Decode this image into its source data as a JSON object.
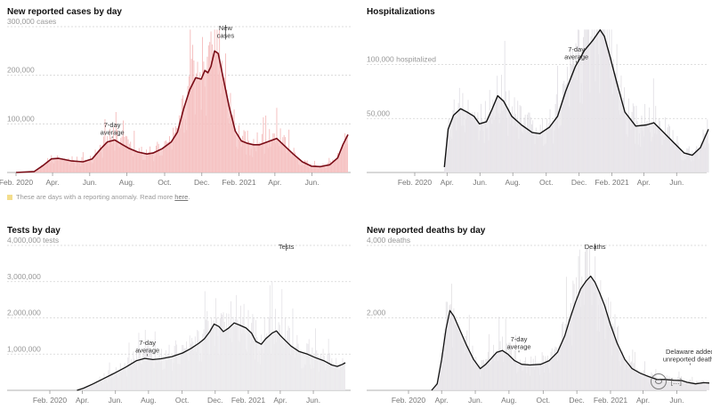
{
  "footnote": {
    "text": "These are days with a reporting anomaly. Read more ",
    "link": "here",
    "suffix": "."
  },
  "watermark": {
    "text": "[...]"
  },
  "chart_data": [
    {
      "id": "cases",
      "type": "area",
      "title": "New reported cases by day",
      "ylim": [
        0,
        300000
      ],
      "yticks": [
        {
          "v": 100000,
          "label": "100,000"
        },
        {
          "v": 200000,
          "label": "200,000"
        },
        {
          "v": 300000,
          "label": "300,000 cases"
        }
      ],
      "xlim": [
        0,
        545
      ],
      "xticks": [
        {
          "x": 0,
          "label": "Feb. 2020"
        },
        {
          "x": 60,
          "label": "Apr."
        },
        {
          "x": 121,
          "label": "Jun."
        },
        {
          "x": 182,
          "label": "Aug."
        },
        {
          "x": 244,
          "label": "Oct."
        },
        {
          "x": 305,
          "label": "Dec."
        },
        {
          "x": 366,
          "label": "Feb. 2021"
        },
        {
          "x": 425,
          "label": "Apr."
        },
        {
          "x": 486,
          "label": "Jun."
        }
      ],
      "series": [
        {
          "name": "7-day average",
          "points": [
            [
              0,
              0
            ],
            [
              30,
              2000
            ],
            [
              45,
              15000
            ],
            [
              58,
              28000
            ],
            [
              70,
              29000
            ],
            [
              90,
              24000
            ],
            [
              110,
              22000
            ],
            [
              125,
              28000
            ],
            [
              140,
              50000
            ],
            [
              150,
              63000
            ],
            [
              162,
              67000
            ],
            [
              175,
              57000
            ],
            [
              185,
              50000
            ],
            [
              200,
              42000
            ],
            [
              215,
              38000
            ],
            [
              225,
              40000
            ],
            [
              240,
              49000
            ],
            [
              255,
              63000
            ],
            [
              265,
              83000
            ],
            [
              275,
              130000
            ],
            [
              285,
              170000
            ],
            [
              295,
              195000
            ],
            [
              304,
              192000
            ],
            [
              310,
              210000
            ],
            [
              315,
              205000
            ],
            [
              320,
              218000
            ],
            [
              326,
              250000
            ],
            [
              332,
              245000
            ],
            [
              340,
              195000
            ],
            [
              350,
              135000
            ],
            [
              360,
              85000
            ],
            [
              370,
              65000
            ],
            [
              380,
              60000
            ],
            [
              390,
              57000
            ],
            [
              400,
              57000
            ],
            [
              415,
              64000
            ],
            [
              428,
              70000
            ],
            [
              440,
              56000
            ],
            [
              455,
              38000
            ],
            [
              470,
              22000
            ],
            [
              485,
              13000
            ],
            [
              500,
              12000
            ],
            [
              515,
              16000
            ],
            [
              528,
              30000
            ],
            [
              537,
              58000
            ],
            [
              545,
              78000
            ]
          ]
        }
      ],
      "annotations": [
        {
          "label": [
            "7-day",
            "average"
          ],
          "x": 158,
          "y": 67000
        },
        {
          "label": [
            "New",
            "cases"
          ],
          "x": 344,
          "y": 300000
        }
      ]
    },
    {
      "id": "hosp",
      "type": "area",
      "title": "Hospitalizations",
      "ylim": [
        0,
        135000
      ],
      "yticks": [
        {
          "v": 50000,
          "label": "50,000"
        },
        {
          "v": 100000,
          "label": "100,000 hospitalized"
        }
      ],
      "xlim": [
        0,
        545
      ],
      "xticks": [
        {
          "x": 0,
          "label": "Feb. 2020"
        },
        {
          "x": 60,
          "label": "Apr."
        },
        {
          "x": 121,
          "label": "Jun."
        },
        {
          "x": 182,
          "label": "Aug."
        },
        {
          "x": 244,
          "label": "Oct."
        },
        {
          "x": 305,
          "label": "Dec."
        },
        {
          "x": 366,
          "label": "Feb. 2021"
        },
        {
          "x": 425,
          "label": "Apr."
        },
        {
          "x": 486,
          "label": "Jun."
        }
      ],
      "series": [
        {
          "name": "7-day average",
          "points": [
            [
              55,
              5000
            ],
            [
              62,
              40000
            ],
            [
              72,
              53000
            ],
            [
              85,
              59000
            ],
            [
              97,
              56000
            ],
            [
              110,
              52000
            ],
            [
              120,
              45000
            ],
            [
              133,
              47000
            ],
            [
              143,
              58000
            ],
            [
              154,
              71000
            ],
            [
              165,
              66000
            ],
            [
              180,
              52000
            ],
            [
              198,
              44000
            ],
            [
              218,
              37000
            ],
            [
              232,
              36000
            ],
            [
              250,
              42000
            ],
            [
              265,
              52000
            ],
            [
              280,
              75000
            ],
            [
              298,
              98000
            ],
            [
              315,
              113000
            ],
            [
              330,
              122000
            ],
            [
              344,
              132000
            ],
            [
              352,
              126000
            ],
            [
              362,
              108000
            ],
            [
              375,
              83000
            ],
            [
              390,
              56000
            ],
            [
              410,
              43000
            ],
            [
              430,
              44000
            ],
            [
              444,
              46000
            ],
            [
              460,
              38000
            ],
            [
              480,
              28000
            ],
            [
              500,
              18000
            ],
            [
              515,
              16000
            ],
            [
              530,
              23000
            ],
            [
              545,
              40000
            ]
          ]
        }
      ],
      "annotations": [
        {
          "label": [
            "7-day",
            "average"
          ],
          "x": 300,
          "y": 100000
        }
      ]
    },
    {
      "id": "tests",
      "type": "area",
      "title": "Tests by day",
      "ylim": [
        0,
        4000000
      ],
      "yticks": [
        {
          "v": 1000000,
          "label": "1,000,000"
        },
        {
          "v": 2000000,
          "label": "2,000,000"
        },
        {
          "v": 3000000,
          "label": "3,000,000"
        },
        {
          "v": 4000000,
          "label": "4,000,000 tests"
        }
      ],
      "xlim": [
        0,
        545
      ],
      "xticks": [
        {
          "x": 0,
          "label": "Feb. 2020"
        },
        {
          "x": 60,
          "label": "Apr."
        },
        {
          "x": 121,
          "label": "Jun."
        },
        {
          "x": 182,
          "label": "Aug."
        },
        {
          "x": 244,
          "label": "Oct."
        },
        {
          "x": 305,
          "label": "Dec."
        },
        {
          "x": 366,
          "label": "Feb. 2021"
        },
        {
          "x": 425,
          "label": "Apr."
        },
        {
          "x": 486,
          "label": "Jun."
        }
      ],
      "series": [
        {
          "name": "7-day average",
          "points": [
            [
              50,
              0
            ],
            [
              62,
              60000
            ],
            [
              80,
              180000
            ],
            [
              100,
              330000
            ],
            [
              120,
              480000
            ],
            [
              140,
              640000
            ],
            [
              160,
              820000
            ],
            [
              175,
              880000
            ],
            [
              190,
              850000
            ],
            [
              205,
              870000
            ],
            [
              225,
              930000
            ],
            [
              245,
              1030000
            ],
            [
              260,
              1150000
            ],
            [
              275,
              1300000
            ],
            [
              285,
              1420000
            ],
            [
              295,
              1620000
            ],
            [
              303,
              1830000
            ],
            [
              312,
              1760000
            ],
            [
              320,
              1620000
            ],
            [
              330,
              1720000
            ],
            [
              340,
              1860000
            ],
            [
              350,
              1800000
            ],
            [
              362,
              1720000
            ],
            [
              372,
              1580000
            ],
            [
              380,
              1350000
            ],
            [
              390,
              1270000
            ],
            [
              398,
              1420000
            ],
            [
              410,
              1580000
            ],
            [
              418,
              1640000
            ],
            [
              426,
              1500000
            ],
            [
              434,
              1380000
            ],
            [
              445,
              1220000
            ],
            [
              460,
              1070000
            ],
            [
              475,
              1000000
            ],
            [
              490,
              900000
            ],
            [
              505,
              820000
            ],
            [
              520,
              700000
            ],
            [
              530,
              660000
            ],
            [
              540,
              720000
            ],
            [
              545,
              760000
            ]
          ]
        }
      ],
      "annotations": [
        {
          "label": [
            "7-day",
            "average"
          ],
          "x": 180,
          "y": 900000
        },
        {
          "label": [
            "Tests"
          ],
          "x": 436,
          "y": 4000000
        }
      ]
    },
    {
      "id": "deaths",
      "type": "area",
      "title": "New reported deaths by day",
      "ylim": [
        0,
        4000
      ],
      "yticks": [
        {
          "v": 2000,
          "label": "2,000"
        },
        {
          "v": 4000,
          "label": "4,000 deaths"
        }
      ],
      "xlim": [
        0,
        545
      ],
      "xticks": [
        {
          "x": 0,
          "label": "Feb. 2020"
        },
        {
          "x": 60,
          "label": "Apr."
        },
        {
          "x": 121,
          "label": "Jun."
        },
        {
          "x": 182,
          "label": "Aug."
        },
        {
          "x": 244,
          "label": "Oct."
        },
        {
          "x": 305,
          "label": "Dec."
        },
        {
          "x": 366,
          "label": "Feb. 2021"
        },
        {
          "x": 425,
          "label": "Apr."
        },
        {
          "x": 486,
          "label": "Jun."
        }
      ],
      "series": [
        {
          "name": "7-day average",
          "points": [
            [
              42,
              0
            ],
            [
              52,
              180
            ],
            [
              60,
              850
            ],
            [
              68,
              1700
            ],
            [
              75,
              2200
            ],
            [
              82,
              2050
            ],
            [
              92,
              1700
            ],
            [
              105,
              1250
            ],
            [
              118,
              850
            ],
            [
              130,
              600
            ],
            [
              140,
              720
            ],
            [
              150,
              880
            ],
            [
              160,
              1050
            ],
            [
              170,
              1100
            ],
            [
              180,
              1000
            ],
            [
              192,
              820
            ],
            [
              205,
              720
            ],
            [
              220,
              700
            ],
            [
              240,
              720
            ],
            [
              255,
              820
            ],
            [
              270,
              1050
            ],
            [
              283,
              1500
            ],
            [
              293,
              2000
            ],
            [
              303,
              2450
            ],
            [
              312,
              2800
            ],
            [
              322,
              3020
            ],
            [
              330,
              3150
            ],
            [
              338,
              2980
            ],
            [
              346,
              2700
            ],
            [
              355,
              2350
            ],
            [
              365,
              1850
            ],
            [
              378,
              1300
            ],
            [
              392,
              850
            ],
            [
              405,
              600
            ],
            [
              420,
              470
            ],
            [
              435,
              380
            ],
            [
              450,
              300
            ],
            [
              465,
              300
            ],
            [
              480,
              280
            ],
            [
              495,
              270
            ],
            [
              505,
              220
            ],
            [
              520,
              180
            ],
            [
              535,
              210
            ],
            [
              545,
              200
            ]
          ]
        }
      ],
      "annotations": [
        {
          "label": [
            "7-day",
            "average"
          ],
          "x": 200,
          "y": 1000
        },
        {
          "label": [
            "Deaths"
          ],
          "x": 338,
          "y": 4000
        },
        {
          "label": [
            "Delaware added",
            "unreported deaths"
          ],
          "x": 510,
          "y": 650
        }
      ]
    }
  ]
}
